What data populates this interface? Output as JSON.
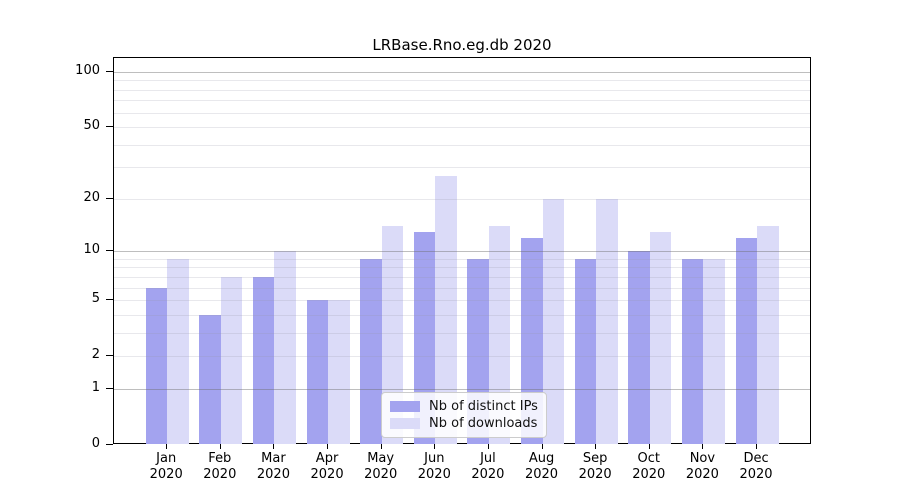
{
  "title": "LRBase.Rno.eg.db 2020",
  "chart_data": {
    "type": "bar",
    "title": "LRBase.Rno.eg.db 2020",
    "categories": [
      "Jan\n2020",
      "Feb\n2020",
      "Mar\n2020",
      "Apr\n2020",
      "May\n2020",
      "Jun\n2020",
      "Jul\n2020",
      "Aug\n2020",
      "Sep\n2020",
      "Oct\n2020",
      "Nov\n2020",
      "Dec\n2020"
    ],
    "series": [
      {
        "name": "Nb of distinct IPs",
        "color": "#a3a3ef",
        "values": [
          6,
          4,
          7,
          5,
          9,
          13,
          9,
          12,
          9,
          10,
          9,
          12
        ]
      },
      {
        "name": "Nb of downloads",
        "color": "#dbdbf8",
        "values": [
          9,
          7,
          10,
          5,
          14,
          27,
          14,
          20,
          20,
          13,
          9,
          14
        ]
      }
    ],
    "xlabel": "",
    "ylabel": "",
    "y_scale": "log10(1+y)",
    "ylim": [
      0,
      119
    ],
    "y_tick_labels": [
      0,
      1,
      2,
      5,
      10,
      20,
      50,
      100
    ],
    "grid_major": [
      1,
      10,
      100
    ],
    "grid_minor": [
      2,
      3,
      4,
      5,
      6,
      7,
      8,
      9,
      20,
      30,
      40,
      50,
      60,
      70,
      80,
      90
    ],
    "grid": "on",
    "legend_position": "lower center"
  }
}
